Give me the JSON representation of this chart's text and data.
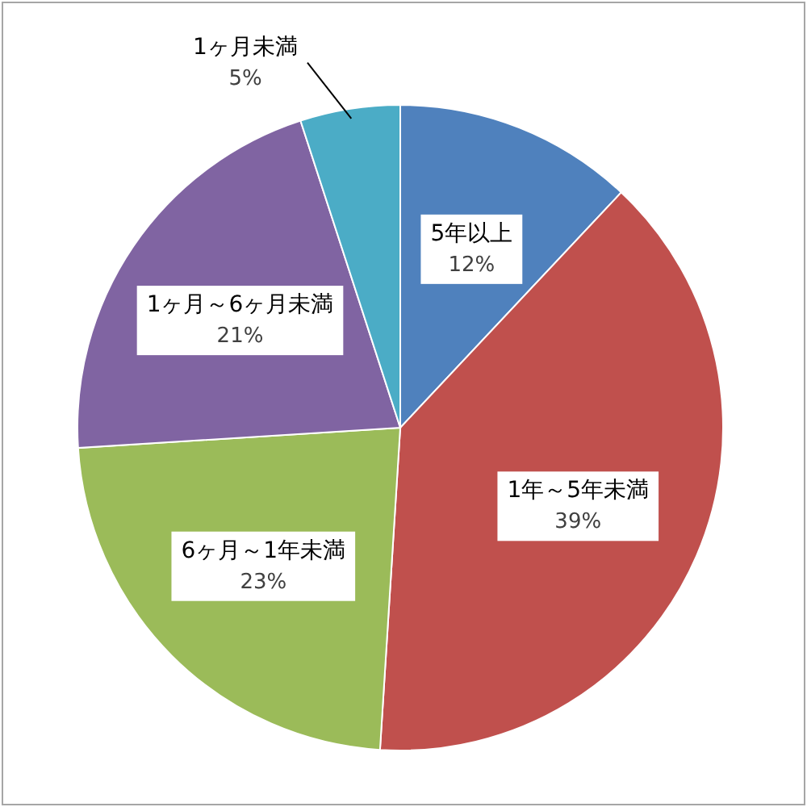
{
  "chart_data": {
    "type": "pie",
    "categories": [
      "5年以上",
      "1年～5年未満",
      "6ヶ月～1年未満",
      "1ヶ月～6ヶ月未満",
      "1ヶ月未満"
    ],
    "values": [
      12,
      39,
      23,
      21,
      5
    ],
    "value_labels": [
      "12%",
      "39%",
      "23%",
      "21%",
      "5%"
    ],
    "colors": [
      "#4f81bd",
      "#c0504d",
      "#9bbb59",
      "#8064a2",
      "#4bacc6"
    ]
  }
}
